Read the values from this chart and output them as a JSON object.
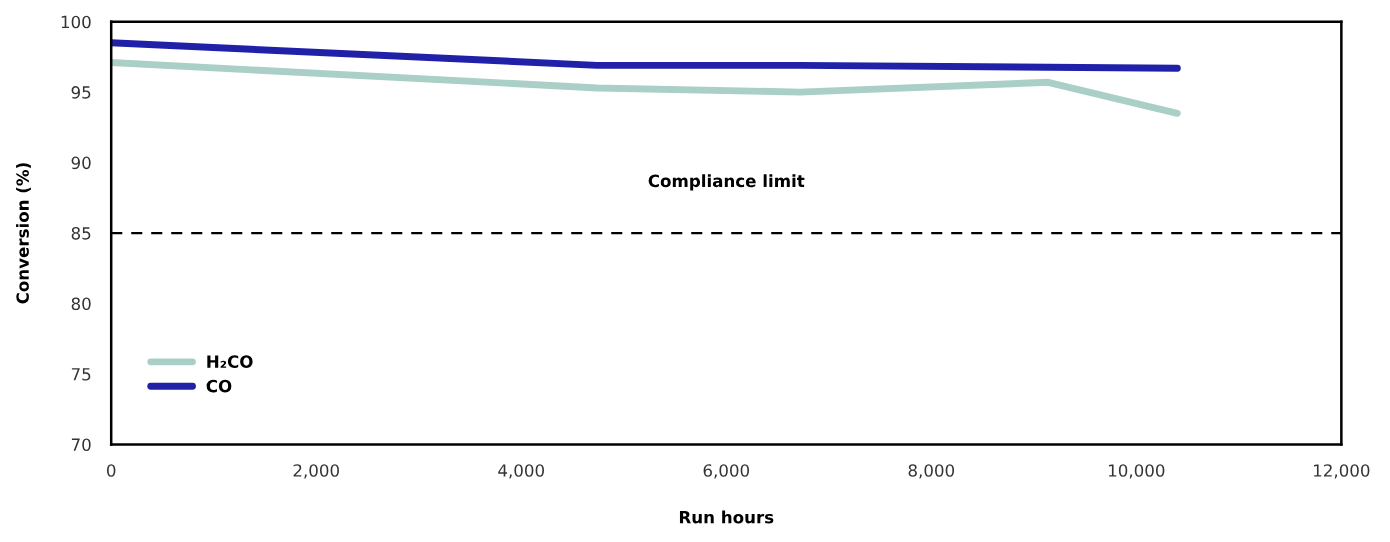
{
  "chart_data": {
    "type": "line",
    "xlabel": "Run hours",
    "ylabel": "Conversion (%)",
    "xlim": [
      0,
      12000
    ],
    "xticks": [
      {
        "value": 0,
        "label": "0"
      },
      {
        "value": 2000,
        "label": "2,000"
      },
      {
        "value": 4000,
        "label": "4,000"
      },
      {
        "value": 6000,
        "label": "6,000"
      },
      {
        "value": 8000,
        "label": "8,000"
      },
      {
        "value": 10000,
        "label": "10,000"
      },
      {
        "value": 12000,
        "label": "12,000"
      }
    ],
    "ylim": [
      70,
      100
    ],
    "yticks": [
      70,
      75,
      80,
      85,
      90,
      95,
      100
    ],
    "series": [
      {
        "name": "H₂CO",
        "color": "#aacfc6",
        "x": [
          0,
          4740,
          6720,
          9140,
          10400
        ],
        "values": [
          97.1,
          95.3,
          95.0,
          95.7,
          93.5
        ]
      },
      {
        "name": "CO",
        "color": "#2020a8",
        "x": [
          0,
          4740,
          6720,
          10400
        ],
        "values": [
          98.5,
          96.9,
          96.9,
          96.7
        ]
      }
    ],
    "ref_lines": [
      {
        "axis": "y",
        "value": 85,
        "label": "Compliance limit",
        "color": "#000000",
        "line_style": "dashed"
      }
    ],
    "grid": false,
    "legend": "bottom left",
    "line_style": "solid",
    "marker": "none"
  }
}
